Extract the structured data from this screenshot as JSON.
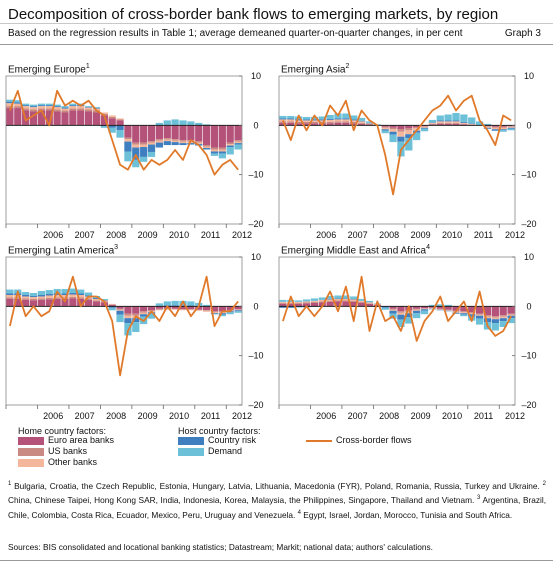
{
  "header": {
    "title": "Decomposition of cross-border bank flows to emerging markets, by region",
    "subtitle": "Based on the regression results in Table 1; average demeaned quarter-on-quarter changes, in per cent",
    "graph_label": "Graph 3"
  },
  "colors": {
    "euro": "#b5527a",
    "us": "#c98a84",
    "other": "#f4b79c",
    "country_risk": "#3f7fbf",
    "demand": "#6cc0d8",
    "flows": "#e07a2a"
  },
  "axis": {
    "yticks": [
      "10",
      "0",
      "–10",
      "–20"
    ],
    "xyears": [
      "2006",
      "2007",
      "2008",
      "2009",
      "2010",
      "2011",
      "2012"
    ]
  },
  "legend": {
    "home_header": "Home country factors:",
    "host_header": "Host country factors:",
    "euro": "Euro area banks",
    "us": "US banks",
    "other": "Other banks",
    "country_risk": "Country risk",
    "demand": "Demand",
    "flows": "Cross-border flows"
  },
  "panels": {
    "europe": {
      "title": "Emerging Europe",
      "note": "1"
    },
    "asia": {
      "title": "Emerging Asia",
      "note": "2"
    },
    "latam": {
      "title": "Emerging Latin America",
      "note": "3"
    },
    "mea": {
      "title": "Emerging Middle East and Africa",
      "note": "4"
    }
  },
  "footnotes": {
    "n1": "1",
    "t1": " Bulgaria, Croatia, the Czech Republic, Estonia, Hungary, Latvia, Lithuania, Macedonia (FYR), Poland, Romania, Russia, Turkey and Ukraine.",
    "n2": "2",
    "t2": " China, Chinese Taipei, Hong Kong SAR, India, Indonesia, Korea, Malaysia, the Philippines, Singapore, Thailand and Vietnam.",
    "n3": "3",
    "t3": " Argentina, Brazil, Chile, Colombia, Costa Rica, Ecuador, Mexico, Peru, Uruguay and Venezuela.",
    "n4": "4",
    "t4": " Egypt, Israel, Jordan, Morocco, Tunisia and South Africa."
  },
  "sources": "Sources: BIS consolidated and locational banking statistics; Datastream; Markit; national data; authors' calculations.",
  "chart_data": [
    {
      "type": "bar",
      "title": "Emerging Europe",
      "ylim": [
        -20,
        10
      ],
      "x_start": "2005Q1",
      "x_end": "2012Q2",
      "categories": [
        "2005Q1",
        "2005Q2",
        "2005Q3",
        "2005Q4",
        "2006Q1",
        "2006Q2",
        "2006Q3",
        "2006Q4",
        "2007Q1",
        "2007Q2",
        "2007Q3",
        "2007Q4",
        "2008Q1",
        "2008Q2",
        "2008Q3",
        "2008Q4",
        "2009Q1",
        "2009Q2",
        "2009Q3",
        "2009Q4",
        "2010Q1",
        "2010Q2",
        "2010Q3",
        "2010Q4",
        "2011Q1",
        "2011Q2",
        "2011Q3",
        "2011Q4",
        "2012Q1",
        "2012Q2"
      ],
      "series": [
        {
          "name": "Euro area banks",
          "values": [
            3.5,
            3.5,
            3,
            2.8,
            3,
            3,
            2.8,
            2.6,
            3,
            3,
            2.8,
            2.6,
            2,
            1.4,
            1,
            -2.5,
            -3.5,
            -3.5,
            -3.2,
            -2.8,
            -2.6,
            -2.8,
            -3,
            -3,
            -3.2,
            -4,
            -4.5,
            -4.5,
            -3.5,
            -3
          ]
        },
        {
          "name": "US banks",
          "values": [
            0.4,
            0.4,
            0.4,
            0.4,
            0.4,
            0.4,
            0.4,
            0.4,
            0.4,
            0.4,
            0.4,
            0.4,
            0.3,
            0.3,
            0.2,
            -0.3,
            -0.4,
            -0.4,
            -0.3,
            -0.3,
            -0.3,
            -0.3,
            -0.3,
            -0.3,
            -0.3,
            -0.3,
            -0.4,
            -0.4,
            -0.3,
            -0.3
          ]
        },
        {
          "name": "Other banks",
          "values": [
            0.6,
            0.5,
            0.5,
            0.5,
            0.5,
            0.5,
            0.5,
            0.4,
            0.5,
            0.5,
            0.4,
            0.4,
            0.3,
            0.3,
            0.2,
            -0.5,
            -0.6,
            -0.5,
            -0.4,
            -0.4,
            -0.3,
            -0.3,
            -0.3,
            -0.3,
            -0.3,
            -0.3,
            -0.4,
            -0.4,
            -0.3,
            -0.3
          ]
        },
        {
          "name": "Country risk",
          "values": [
            0.3,
            0.3,
            0.2,
            0.2,
            0.2,
            0.2,
            0.2,
            0.2,
            0.2,
            0.2,
            0.1,
            0.1,
            -0.2,
            -0.5,
            -1,
            -2,
            -2.5,
            -2,
            -1.5,
            -1,
            -0.8,
            -0.6,
            -0.4,
            -0.3,
            -0.3,
            -0.3,
            -0.4,
            -0.4,
            -0.3,
            -0.3
          ]
        },
        {
          "name": "Demand",
          "values": [
            0.4,
            0.4,
            0.3,
            0.3,
            0.3,
            0.3,
            0.3,
            0.3,
            0.3,
            0.3,
            0.2,
            0.2,
            -0.3,
            -1,
            -1.5,
            -2,
            -1.5,
            -1,
            -1,
            0.5,
            1,
            1.2,
            1,
            0.8,
            0.5,
            0.2,
            -0.5,
            -1,
            -1.5,
            -1
          ]
        },
        {
          "name": "Cross-border flows",
          "type": "line",
          "values": [
            3,
            7,
            1,
            2,
            3,
            0,
            7,
            4,
            5,
            4,
            5,
            3,
            2,
            -3,
            -8,
            -9,
            -6,
            -9,
            -7,
            -8,
            -7,
            -5,
            -7,
            -3,
            -4,
            -6,
            -10,
            -8,
            -7,
            -9
          ]
        }
      ]
    },
    {
      "type": "bar",
      "title": "Emerging Asia",
      "ylim": [
        -20,
        10
      ],
      "x_start": "2005Q1",
      "x_end": "2012Q2",
      "categories": [
        "2005Q1",
        "2005Q2",
        "2005Q3",
        "2005Q4",
        "2006Q1",
        "2006Q2",
        "2006Q3",
        "2006Q4",
        "2007Q1",
        "2007Q2",
        "2007Q3",
        "2007Q4",
        "2008Q1",
        "2008Q2",
        "2008Q3",
        "2008Q4",
        "2009Q1",
        "2009Q2",
        "2009Q3",
        "2009Q4",
        "2010Q1",
        "2010Q2",
        "2010Q3",
        "2010Q4",
        "2011Q1",
        "2011Q2",
        "2011Q3",
        "2011Q4",
        "2012Q1",
        "2012Q2"
      ],
      "series": [
        {
          "name": "Euro area banks",
          "values": [
            0.5,
            0.5,
            0.4,
            0.4,
            0.4,
            0.4,
            0.4,
            0.5,
            0.5,
            0.4,
            0.3,
            0.2,
            0,
            -0.3,
            -0.5,
            -0.8,
            -0.6,
            -0.4,
            -0.2,
            0.2,
            0.3,
            0.3,
            0.3,
            0.2,
            0.1,
            0,
            -0.2,
            -0.3,
            -0.3,
            -0.2
          ]
        },
        {
          "name": "US banks",
          "values": [
            0.3,
            0.3,
            0.3,
            0.3,
            0.3,
            0.3,
            0.3,
            0.3,
            0.3,
            0.3,
            0.2,
            0.1,
            0,
            -0.2,
            -0.3,
            -0.5,
            -0.4,
            -0.2,
            -0.1,
            0.1,
            0.2,
            0.2,
            0.2,
            0.1,
            0.1,
            0,
            -0.1,
            -0.2,
            -0.2,
            -0.1
          ]
        },
        {
          "name": "Other banks",
          "values": [
            0.4,
            0.4,
            0.3,
            0.3,
            0.3,
            0.3,
            0.4,
            0.4,
            0.4,
            0.3,
            0.3,
            0.1,
            0,
            -0.3,
            -0.5,
            -1,
            -0.8,
            -0.5,
            -0.2,
            0.2,
            0.3,
            0.3,
            0.3,
            0.2,
            0.1,
            0,
            -0.2,
            -0.3,
            -0.3,
            -0.2
          ]
        },
        {
          "name": "Country risk",
          "values": [
            0.2,
            0.2,
            0.2,
            0.2,
            0.2,
            0.2,
            0.2,
            0.2,
            0.2,
            0.2,
            0.1,
            0.1,
            0,
            -0.3,
            -0.6,
            -1,
            -0.8,
            -0.4,
            -0.2,
            0.1,
            0.2,
            0.2,
            0.2,
            0.2,
            0.1,
            0,
            -0.2,
            -0.3,
            -0.2,
            -0.2
          ]
        },
        {
          "name": "Demand",
          "values": [
            0.5,
            0.5,
            0.6,
            0.5,
            0.5,
            0.6,
            0.8,
            1,
            1,
            0.8,
            0.6,
            0.3,
            0.2,
            -0.5,
            -1.5,
            -3,
            -2.5,
            -1.5,
            -0.5,
            0.5,
            1,
            1.2,
            1.5,
            1.5,
            1.2,
            0.8,
            0.3,
            0,
            -0.3,
            -0.3
          ]
        },
        {
          "name": "Cross-border flows",
          "type": "line",
          "values": [
            1,
            -3,
            2,
            -1,
            2,
            0,
            4,
            2,
            5,
            -1,
            3,
            1,
            0,
            -6,
            -14,
            -5,
            -3,
            -1,
            1,
            3,
            4,
            6,
            3,
            5,
            6,
            1,
            -1,
            -4,
            2,
            1
          ]
        }
      ]
    },
    {
      "type": "bar",
      "title": "Emerging Latin America",
      "ylim": [
        -20,
        10
      ],
      "x_start": "2005Q1",
      "x_end": "2012Q2",
      "categories": [
        "2005Q1",
        "2005Q2",
        "2005Q3",
        "2005Q4",
        "2006Q1",
        "2006Q2",
        "2006Q3",
        "2006Q4",
        "2007Q1",
        "2007Q2",
        "2007Q3",
        "2007Q4",
        "2008Q1",
        "2008Q2",
        "2008Q3",
        "2008Q4",
        "2009Q1",
        "2009Q2",
        "2009Q3",
        "2009Q4",
        "2010Q1",
        "2010Q2",
        "2010Q3",
        "2010Q4",
        "2011Q1",
        "2011Q2",
        "2011Q3",
        "2011Q4",
        "2012Q1",
        "2012Q2"
      ],
      "series": [
        {
          "name": "Euro area banks",
          "values": [
            1.5,
            1.5,
            1.3,
            1.2,
            1.3,
            1.4,
            1.5,
            1.5,
            1.6,
            1.5,
            1.3,
            1,
            0.8,
            0.3,
            -0.5,
            -1.5,
            -1.5,
            -1,
            -0.8,
            -0.5,
            -0.5,
            -0.5,
            -0.6,
            -0.6,
            -0.7,
            -0.8,
            -1,
            -1,
            -0.8,
            -0.6
          ]
        },
        {
          "name": "US banks",
          "values": [
            0.3,
            0.3,
            0.3,
            0.3,
            0.3,
            0.3,
            0.3,
            0.3,
            0.3,
            0.3,
            0.3,
            0.2,
            0.2,
            0.1,
            -0.2,
            -0.4,
            -0.4,
            -0.3,
            -0.2,
            -0.2,
            -0.1,
            -0.1,
            -0.1,
            -0.1,
            -0.1,
            -0.1,
            -0.2,
            -0.2,
            -0.1,
            -0.1
          ]
        },
        {
          "name": "Other banks",
          "values": [
            0.5,
            0.5,
            0.4,
            0.4,
            0.4,
            0.5,
            0.5,
            0.5,
            0.5,
            0.5,
            0.4,
            0.3,
            0.2,
            0.1,
            -0.2,
            -0.5,
            -0.5,
            -0.3,
            -0.2,
            -0.1,
            -0.1,
            -0.1,
            -0.1,
            -0.1,
            -0.1,
            -0.2,
            -0.2,
            -0.2,
            -0.1,
            -0.1
          ]
        },
        {
          "name": "Country risk",
          "values": [
            0.3,
            0.3,
            0.3,
            0.2,
            0.3,
            0.3,
            0.3,
            0.3,
            0.3,
            0.3,
            0.2,
            0.2,
            0.1,
            -0.3,
            -0.8,
            -1,
            -0.8,
            -0.5,
            -0.3,
            0.1,
            0.2,
            0.2,
            0.2,
            0.2,
            0.1,
            0,
            -0.2,
            -0.3,
            -0.2,
            -0.2
          ]
        },
        {
          "name": "Demand",
          "values": [
            0.8,
            0.8,
            0.6,
            0.6,
            0.8,
            0.8,
            0.9,
            0.9,
            0.9,
            0.8,
            0.6,
            0.4,
            0.2,
            -0.5,
            -1.5,
            -2.5,
            -2,
            -1.5,
            -1,
            0.5,
            0.8,
            0.9,
            0.9,
            0.8,
            0.6,
            0.3,
            0,
            -0.3,
            -0.4,
            -0.3
          ]
        },
        {
          "name": "Cross-border flows",
          "type": "line",
          "values": [
            -4,
            3,
            -2,
            0,
            -2,
            -1,
            3,
            1,
            6,
            0,
            2,
            2,
            1,
            -3,
            -14,
            -5,
            -2,
            -3,
            -1,
            -3,
            0,
            -2,
            1,
            -2,
            0,
            6,
            -4,
            -1,
            -1,
            1
          ]
        }
      ]
    },
    {
      "type": "bar",
      "title": "Emerging Middle East and Africa",
      "ylim": [
        -20,
        10
      ],
      "x_start": "2005Q1",
      "x_end": "2012Q2",
      "categories": [
        "2005Q1",
        "2005Q2",
        "2005Q3",
        "2005Q4",
        "2006Q1",
        "2006Q2",
        "2006Q3",
        "2006Q4",
        "2007Q1",
        "2007Q2",
        "2007Q3",
        "2007Q4",
        "2008Q1",
        "2008Q2",
        "2008Q3",
        "2008Q4",
        "2009Q1",
        "2009Q2",
        "2009Q3",
        "2009Q4",
        "2010Q1",
        "2010Q2",
        "2010Q3",
        "2010Q4",
        "2011Q1",
        "2011Q2",
        "2011Q3",
        "2011Q4",
        "2012Q1",
        "2012Q2"
      ],
      "series": [
        {
          "name": "Euro area banks",
          "values": [
            0.5,
            0.5,
            0.5,
            0.6,
            0.7,
            0.8,
            0.9,
            1,
            1,
            0.9,
            0.7,
            0.5,
            0.3,
            0,
            -0.5,
            -1,
            -0.8,
            -0.5,
            -0.4,
            -0.3,
            -0.5,
            -0.7,
            -0.9,
            -1,
            -1.2,
            -1.5,
            -1.8,
            -2,
            -1.8,
            -1.5
          ]
        },
        {
          "name": "US banks",
          "values": [
            0.2,
            0.2,
            0.2,
            0.2,
            0.2,
            0.2,
            0.2,
            0.2,
            0.2,
            0.2,
            0.2,
            0.1,
            0.1,
            0,
            -0.2,
            -0.3,
            -0.3,
            -0.2,
            -0.1,
            -0.1,
            -0.1,
            -0.1,
            -0.2,
            -0.2,
            -0.2,
            -0.2,
            -0.3,
            -0.3,
            -0.3,
            -0.2
          ]
        },
        {
          "name": "Other banks",
          "values": [
            0.2,
            0.2,
            0.2,
            0.2,
            0.2,
            0.3,
            0.3,
            0.3,
            0.3,
            0.3,
            0.2,
            0.2,
            0.1,
            0,
            -0.2,
            -0.4,
            -0.3,
            -0.2,
            -0.1,
            -0.1,
            -0.1,
            -0.1,
            -0.2,
            -0.2,
            -0.2,
            -0.2,
            -0.3,
            -0.3,
            -0.3,
            -0.2
          ]
        },
        {
          "name": "Country risk",
          "values": [
            -0.3,
            -0.3,
            -0.2,
            -0.2,
            -0.1,
            0,
            0.1,
            0.1,
            0.1,
            0.1,
            0,
            0,
            -0.1,
            -0.3,
            -0.6,
            -1,
            -0.8,
            -0.5,
            -0.3,
            -0.1,
            -0.1,
            -0.1,
            -0.2,
            -0.3,
            -0.5,
            -0.6,
            -0.8,
            -0.8,
            -0.6,
            -0.5
          ]
        },
        {
          "name": "Demand",
          "values": [
            0.4,
            0.4,
            0.3,
            0.4,
            0.5,
            0.5,
            0.6,
            0.6,
            0.6,
            0.5,
            0.4,
            0.3,
            0.1,
            -0.4,
            -1,
            -1.5,
            -1.3,
            -1,
            -0.7,
            0.3,
            0.4,
            0.3,
            0,
            -0.3,
            -0.8,
            -1.2,
            -1.5,
            -1.5,
            -1.2,
            -1
          ]
        },
        {
          "name": "Cross-border flows",
          "type": "line",
          "values": [
            -3,
            2,
            -2,
            0,
            -2,
            0,
            3,
            -1,
            4,
            -3,
            6,
            -5,
            1,
            -3,
            -2,
            -5,
            0,
            -7,
            -3,
            -1,
            2,
            -3,
            -1,
            1,
            -3,
            3,
            -4,
            -6,
            -5,
            -2
          ]
        }
      ]
    }
  ]
}
